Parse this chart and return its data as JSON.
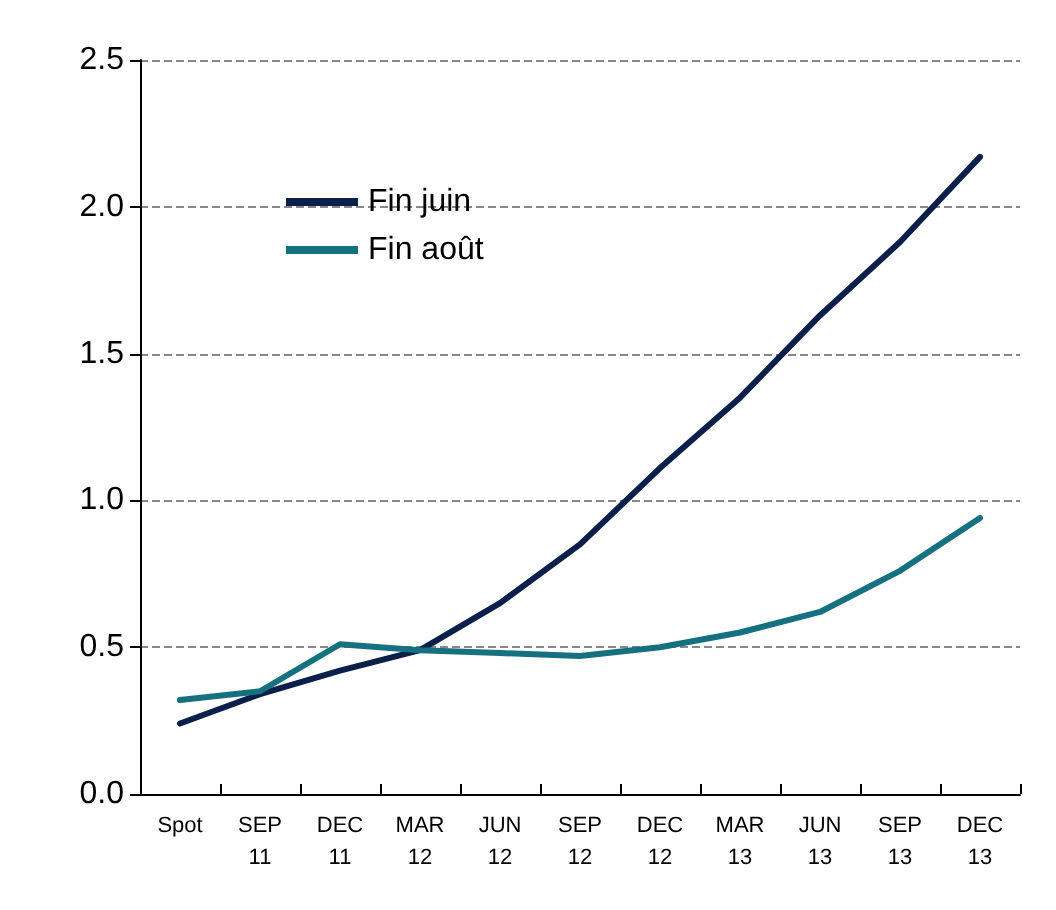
{
  "chart_data": {
    "type": "line",
    "categories": [
      "Spot",
      "SEP 11",
      "DEC 11",
      "MAR 12",
      "JUN 12",
      "SEP 12",
      "DEC 12",
      "MAR 13",
      "JUN 13",
      "SEP 13",
      "DEC 13"
    ],
    "series": [
      {
        "name": "Fin juin",
        "color": "#0b1f4b",
        "values": [
          0.24,
          0.34,
          0.42,
          0.49,
          0.65,
          0.85,
          1.11,
          1.35,
          1.63,
          1.88,
          2.17
        ]
      },
      {
        "name": "Fin août",
        "color": "#15707f",
        "values": [
          0.32,
          0.35,
          0.51,
          0.49,
          0.48,
          0.47,
          0.5,
          0.55,
          0.62,
          0.76,
          0.94
        ]
      }
    ],
    "ylim": [
      0,
      2.5
    ],
    "yticks": [
      {
        "value": 0,
        "label": "0.0"
      },
      {
        "value": 0.5,
        "label": "0.5"
      },
      {
        "value": 1,
        "label": "1.0"
      },
      {
        "value": 1.5,
        "label": "1.5"
      },
      {
        "value": 2,
        "label": "2.0"
      },
      {
        "value": 2.5,
        "label": "2.5"
      }
    ],
    "grid": "y",
    "legend": "top left",
    "marker": "none",
    "line_style": "solid"
  }
}
